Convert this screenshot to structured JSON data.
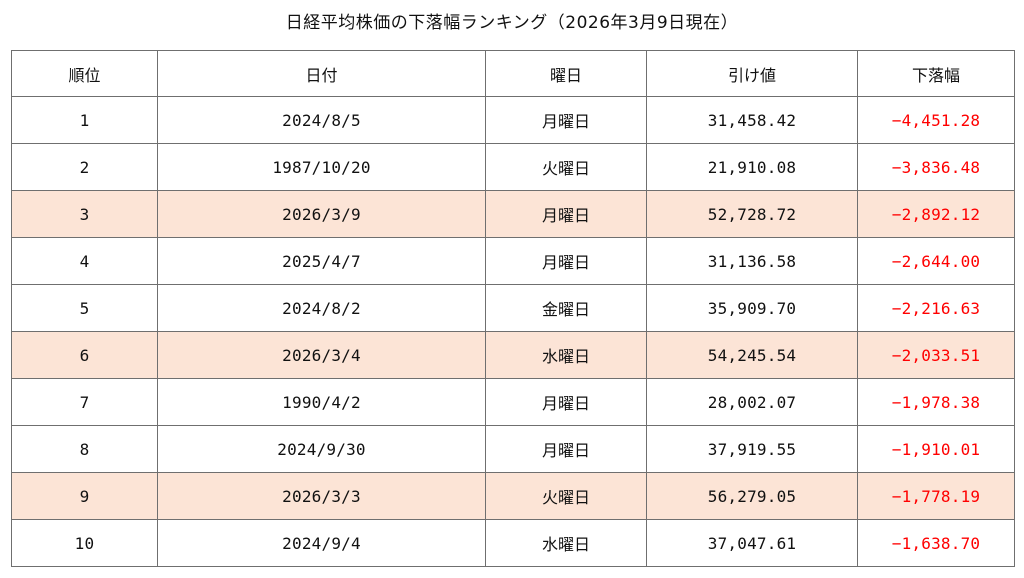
{
  "title": "日経平均株価の下落幅ランキング（2026年3月9日現在）",
  "colors": {
    "highlight_row": "#fce4d6",
    "drop_text": "#ff0000",
    "border": "#6f6f6f"
  },
  "table": {
    "headers": {
      "rank": "順位",
      "date": "日付",
      "weekday": "曜日",
      "close": "引け値",
      "drop": "下落幅"
    },
    "rows": [
      {
        "rank": "1",
        "date": "2024/8/5",
        "weekday": "月曜日",
        "close": "31,458.42",
        "drop": "−4,451.28",
        "highlight": false
      },
      {
        "rank": "2",
        "date": "1987/10/20",
        "weekday": "火曜日",
        "close": "21,910.08",
        "drop": "−3,836.48",
        "highlight": false
      },
      {
        "rank": "3",
        "date": "2026/3/9",
        "weekday": "月曜日",
        "close": "52,728.72",
        "drop": "−2,892.12",
        "highlight": true
      },
      {
        "rank": "4",
        "date": "2025/4/7",
        "weekday": "月曜日",
        "close": "31,136.58",
        "drop": "−2,644.00",
        "highlight": false
      },
      {
        "rank": "5",
        "date": "2024/8/2",
        "weekday": "金曜日",
        "close": "35,909.70",
        "drop": "−2,216.63",
        "highlight": false
      },
      {
        "rank": "6",
        "date": "2026/3/4",
        "weekday": "水曜日",
        "close": "54,245.54",
        "drop": "−2,033.51",
        "highlight": true
      },
      {
        "rank": "7",
        "date": "1990/4/2",
        "weekday": "月曜日",
        "close": "28,002.07",
        "drop": "−1,978.38",
        "highlight": false
      },
      {
        "rank": "8",
        "date": "2024/9/30",
        "weekday": "月曜日",
        "close": "37,919.55",
        "drop": "−1,910.01",
        "highlight": false
      },
      {
        "rank": "9",
        "date": "2026/3/3",
        "weekday": "火曜日",
        "close": "56,279.05",
        "drop": "−1,778.19",
        "highlight": true
      },
      {
        "rank": "10",
        "date": "2024/9/4",
        "weekday": "水曜日",
        "close": "37,047.61",
        "drop": "−1,638.70",
        "highlight": false
      }
    ]
  }
}
